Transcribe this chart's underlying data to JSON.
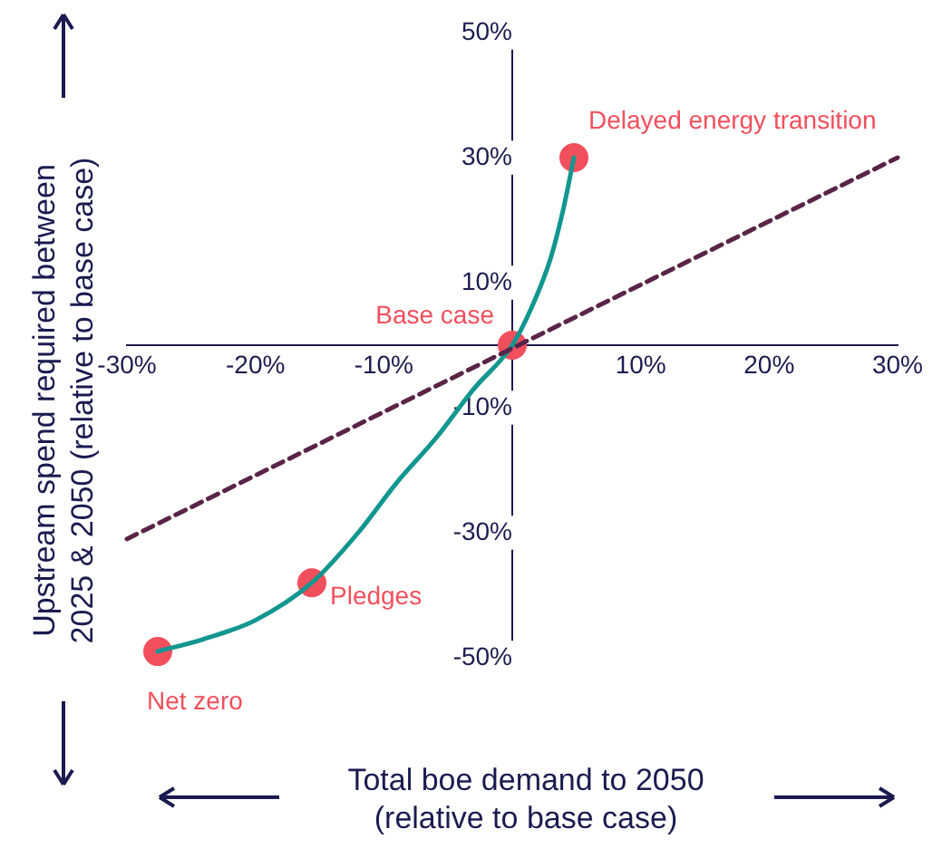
{
  "chart_data": {
    "type": "line",
    "xlabel": "Total boe demand to 2050\n(relative to base case)",
    "ylabel": "Upstream spend required between\n2025 & 2050 (relative to base case)",
    "series": [
      {
        "color": "#5a2448",
        "line_style": "dashed",
        "marker": "none",
        "x": [
          -30,
          30
        ],
        "values": [
          -31,
          30
        ]
      },
      {
        "color": "#12968f",
        "line_style": "solid",
        "marker": "none",
        "x": [
          -27.6,
          -24,
          -20,
          -15.6,
          -12,
          -9,
          -6,
          -3,
          0,
          1.5,
          3,
          4,
          4.8
        ],
        "values": [
          -49,
          -47,
          -44,
          -38,
          -30,
          -22,
          -15,
          -7,
          0,
          6,
          14,
          22,
          30
        ]
      },
      {
        "type": "scatter",
        "color": "#f24f5c",
        "marker": "circle",
        "x": [
          4.8,
          0,
          -15.6,
          -27.6
        ],
        "values": [
          30,
          0,
          -38,
          -49
        ]
      }
    ],
    "annotations": [
      {
        "text": "Delayed energy transition",
        "x": 4.8,
        "y": 30
      },
      {
        "text": "Base case",
        "x": 0,
        "y": 0
      },
      {
        "text": "Pledges",
        "x": -15.6,
        "y": -38
      },
      {
        "text": "Net zero",
        "x": -27.6,
        "y": -49
      }
    ],
    "xlim": [
      -30,
      30
    ],
    "ylim": [
      -50,
      50
    ],
    "xticks": [
      {
        "value": -30,
        "label": "-30%"
      },
      {
        "value": -20,
        "label": "-20%"
      },
      {
        "value": -10,
        "label": "-10%"
      },
      {
        "value": 10,
        "label": "10%"
      },
      {
        "value": 20,
        "label": "20%"
      },
      {
        "value": 30,
        "label": "30%"
      }
    ],
    "yticks": [
      {
        "value": -50,
        "label": "-50%"
      },
      {
        "value": -30,
        "label": "-30%"
      },
      {
        "value": -10,
        "label": "-10%"
      },
      {
        "value": 10,
        "label": "10%"
      },
      {
        "value": 30,
        "label": "30%"
      },
      {
        "value": 50,
        "label": "50%"
      }
    ],
    "grid": false,
    "legend": false
  }
}
